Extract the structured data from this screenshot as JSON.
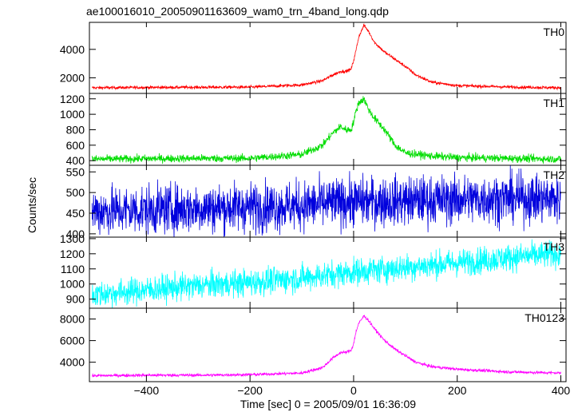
{
  "chart_data": {
    "type": "line",
    "title": "ae100016010_20050901163609_wam0_trn_4band_long.qdp",
    "xlabel": "Time [sec] 0 = 2005/09/01 16:36:09",
    "ylabel": "Counts/sec",
    "xlim": [
      -510,
      410
    ],
    "x_ticks": [
      "−400",
      "−200",
      "0",
      "200",
      "400"
    ],
    "x_tick_values": [
      -400,
      -200,
      0,
      200,
      400
    ],
    "grid": false,
    "panels": [
      {
        "name": "TH0",
        "color": "#ff0000",
        "ylim": [
          900,
          5900
        ],
        "y_ticks": [
          "2000",
          "4000"
        ],
        "y_tick_values": [
          2000,
          4000
        ],
        "noise": 55,
        "x": [
          -500,
          -400,
          -300,
          -200,
          -100,
          -60,
          -40,
          -25,
          -15,
          -5,
          0,
          5,
          10,
          20,
          30,
          40,
          60,
          80,
          100,
          120,
          150,
          200,
          300,
          400
        ],
        "y": [
          1300,
          1320,
          1330,
          1340,
          1500,
          1800,
          2200,
          2450,
          2450,
          2600,
          3200,
          4000,
          4900,
          5700,
          5200,
          4500,
          3800,
          3300,
          2800,
          2200,
          1700,
          1450,
          1350,
          1300
        ]
      },
      {
        "name": "TH1",
        "color": "#00dd00",
        "ylim": [
          340,
          1270
        ],
        "y_ticks": [
          "400",
          "600",
          "800",
          "1000",
          "1200"
        ],
        "y_tick_values": [
          400,
          600,
          800,
          1000,
          1200
        ],
        "noise": 25,
        "x": [
          -500,
          -400,
          -300,
          -200,
          -100,
          -60,
          -40,
          -25,
          -15,
          -5,
          0,
          5,
          10,
          20,
          30,
          40,
          60,
          80,
          100,
          150,
          200,
          300,
          400
        ],
        "y": [
          420,
          425,
          430,
          430,
          480,
          600,
          760,
          840,
          800,
          800,
          900,
          1050,
          1150,
          1200,
          1050,
          950,
          800,
          600,
          500,
          460,
          440,
          430,
          420
        ]
      },
      {
        "name": "TH2",
        "color": "#0000dd",
        "ylim": [
          392,
          566
        ],
        "y_ticks": [
          "400",
          "450",
          "500",
          "550"
        ],
        "y_tick_values": [
          400,
          450,
          500,
          550
        ],
        "noise": 30,
        "x": [
          -500,
          -400,
          -300,
          -200,
          -100,
          0,
          100,
          200,
          300,
          400
        ],
        "y": [
          455,
          458,
          462,
          465,
          468,
          478,
          480,
          483,
          486,
          485
        ]
      },
      {
        "name": "TH3",
        "color": "#00ffff",
        "ylim": [
          840,
          1310
        ],
        "y_ticks": [
          "900",
          "1000",
          "1100",
          "1200",
          "1300"
        ],
        "y_tick_values": [
          900,
          1000,
          1100,
          1200,
          1300
        ],
        "noise": 45,
        "x": [
          -500,
          -400,
          -300,
          -200,
          -100,
          0,
          100,
          200,
          300,
          400
        ],
        "y": [
          930,
          960,
          990,
          1010,
          1040,
          1080,
          1110,
          1140,
          1175,
          1200
        ]
      },
      {
        "name": "TH0123",
        "color": "#ff00ff",
        "ylim": [
          2200,
          9000
        ],
        "y_ticks": [
          "4000",
          "6000",
          "8000"
        ],
        "y_tick_values": [
          4000,
          6000,
          8000
        ],
        "noise": 70,
        "x": [
          -500,
          -400,
          -300,
          -200,
          -100,
          -60,
          -40,
          -25,
          -15,
          -5,
          0,
          5,
          10,
          20,
          30,
          40,
          60,
          80,
          100,
          120,
          150,
          200,
          300,
          400
        ],
        "y": [
          2750,
          2800,
          2800,
          2850,
          3000,
          3500,
          4400,
          4900,
          4900,
          5100,
          5700,
          6900,
          7600,
          8300,
          7800,
          7100,
          6000,
          5200,
          4600,
          4000,
          3600,
          3350,
          3100,
          3000
        ]
      }
    ]
  }
}
